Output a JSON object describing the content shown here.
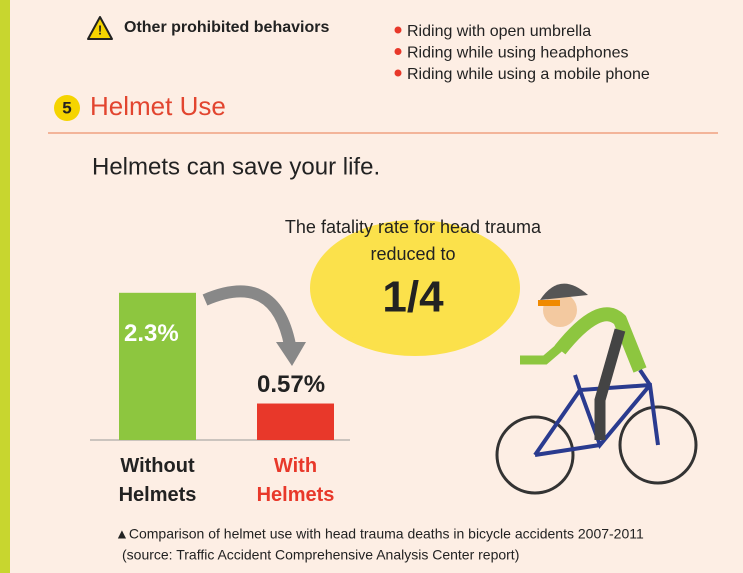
{
  "prohibited": {
    "heading": "Other prohibited behaviors",
    "items": [
      "Riding with open umbrella",
      "Riding while using headphones",
      "Riding while using a mobile phone"
    ]
  },
  "section": {
    "number": "5",
    "title": "Helmet Use",
    "lead": "Helmets can save your life."
  },
  "bubble": {
    "text": [
      "The fatality rate for head trauma",
      "reduced to"
    ],
    "figure": "1/4"
  },
  "chart_data": {
    "type": "bar",
    "categories": [
      "Without Helmets",
      "With Helmets"
    ],
    "values": [
      2.3,
      0.57
    ],
    "value_labels": [
      "2.3%",
      "0.57%"
    ],
    "colors": [
      "#8dc63f",
      "#e8382a"
    ],
    "label_colors": [
      "#222222",
      "#e8382a"
    ]
  },
  "caption": [
    "▲Comparison of helmet use with head trauma deaths in bicycle accidents 2007-2011",
    "(source: Traffic Accident Comprehensive Analysis Center report)"
  ]
}
